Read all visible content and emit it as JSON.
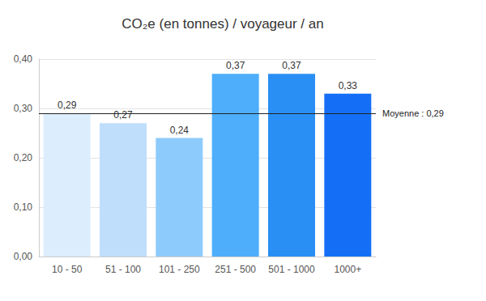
{
  "chart_data": {
    "type": "bar",
    "title": "CO₂e (en tonnes) / voyageur / an",
    "categories": [
      "10 - 50",
      "51 - 100",
      "101 - 250",
      "251 - 500",
      "501 - 1000",
      "1000+"
    ],
    "values": [
      0.29,
      0.27,
      0.24,
      0.37,
      0.37,
      0.33
    ],
    "value_labels": [
      "0,29",
      "0,27",
      "0,24",
      "0,37",
      "0,37",
      "0,33"
    ],
    "colors": [
      "#dcedfd",
      "#bfdefc",
      "#8ecbfd",
      "#4eaefb",
      "#2a8ff5",
      "#146ff6"
    ],
    "ylim": [
      0,
      0.4
    ],
    "yticks": [
      {
        "value": 0,
        "label": "0,00"
      },
      {
        "value": 0.1,
        "label": "0,10"
      },
      {
        "value": 0.2,
        "label": "0,20"
      },
      {
        "value": 0.3,
        "label": "0,30"
      },
      {
        "value": 0.4,
        "label": "0,40"
      }
    ],
    "reference_line": {
      "value": 0.29,
      "label": "Moyenne : 0,29"
    },
    "grid": true,
    "data_labels": true
  }
}
